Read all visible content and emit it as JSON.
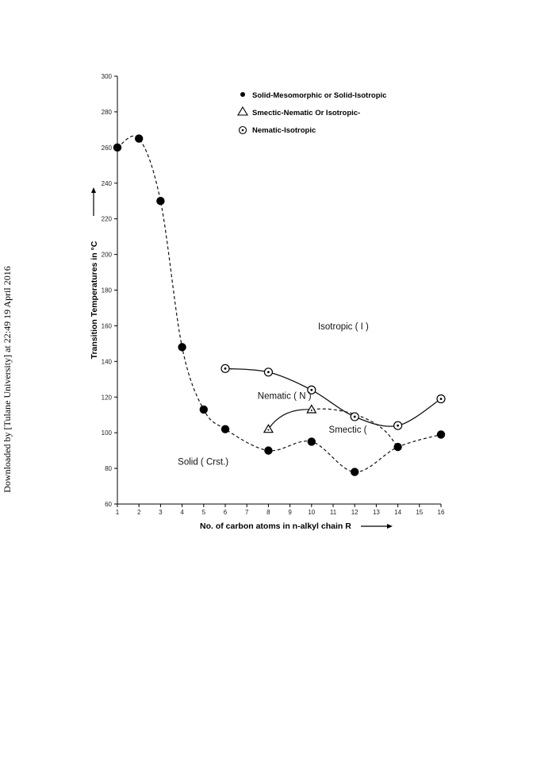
{
  "side_note": "Downloaded by [Tulane University] at 22:49 19 April 2016",
  "chart_data": {
    "type": "line",
    "title": "",
    "xlabel": "No. of carbon atoms in n-alkyl chain R",
    "ylabel": "Transition Temperatures in °C",
    "xlim": [
      1,
      16
    ],
    "ylim": [
      60,
      300
    ],
    "x_ticks": [
      1,
      2,
      3,
      4,
      5,
      6,
      7,
      8,
      9,
      10,
      11,
      12,
      13,
      14,
      15,
      16
    ],
    "y_ticks": [
      60,
      80,
      100,
      120,
      140,
      160,
      180,
      200,
      220,
      240,
      260,
      280,
      300
    ],
    "grid": false,
    "legend_position": "top-right",
    "series": [
      {
        "name": "Solid-Mesomorphic or Solid-Isotropic",
        "marker": "filled-circle",
        "line": "dashed",
        "x": [
          1,
          2,
          3,
          4,
          5,
          6,
          8,
          10,
          12,
          14,
          16
        ],
        "y": [
          260,
          265,
          230,
          148,
          113,
          102,
          90,
          95,
          78,
          92,
          99
        ]
      },
      {
        "name": "Smectic-Nematic Or Isotropic-",
        "marker": "triangle",
        "line": "solid",
        "x": [
          8,
          10
        ],
        "y": [
          102,
          113
        ]
      },
      {
        "name": "Nematic-Isotropic",
        "marker": "dotted-circle",
        "line": "solid",
        "x": [
          6,
          8,
          10,
          12,
          14,
          16
        ],
        "y": [
          136,
          134,
          124,
          109,
          104,
          119
        ]
      }
    ],
    "annotations": [
      {
        "text": "Isotropic ( I )",
        "x": 10.3,
        "y": 158
      },
      {
        "text": "Nematic ( N )",
        "x": 7.5,
        "y": 119
      },
      {
        "text": "Smectic (",
        "x": 10.8,
        "y": 100
      },
      {
        "text": "Solid  ( Crst.)",
        "x": 3.8,
        "y": 82
      }
    ]
  }
}
